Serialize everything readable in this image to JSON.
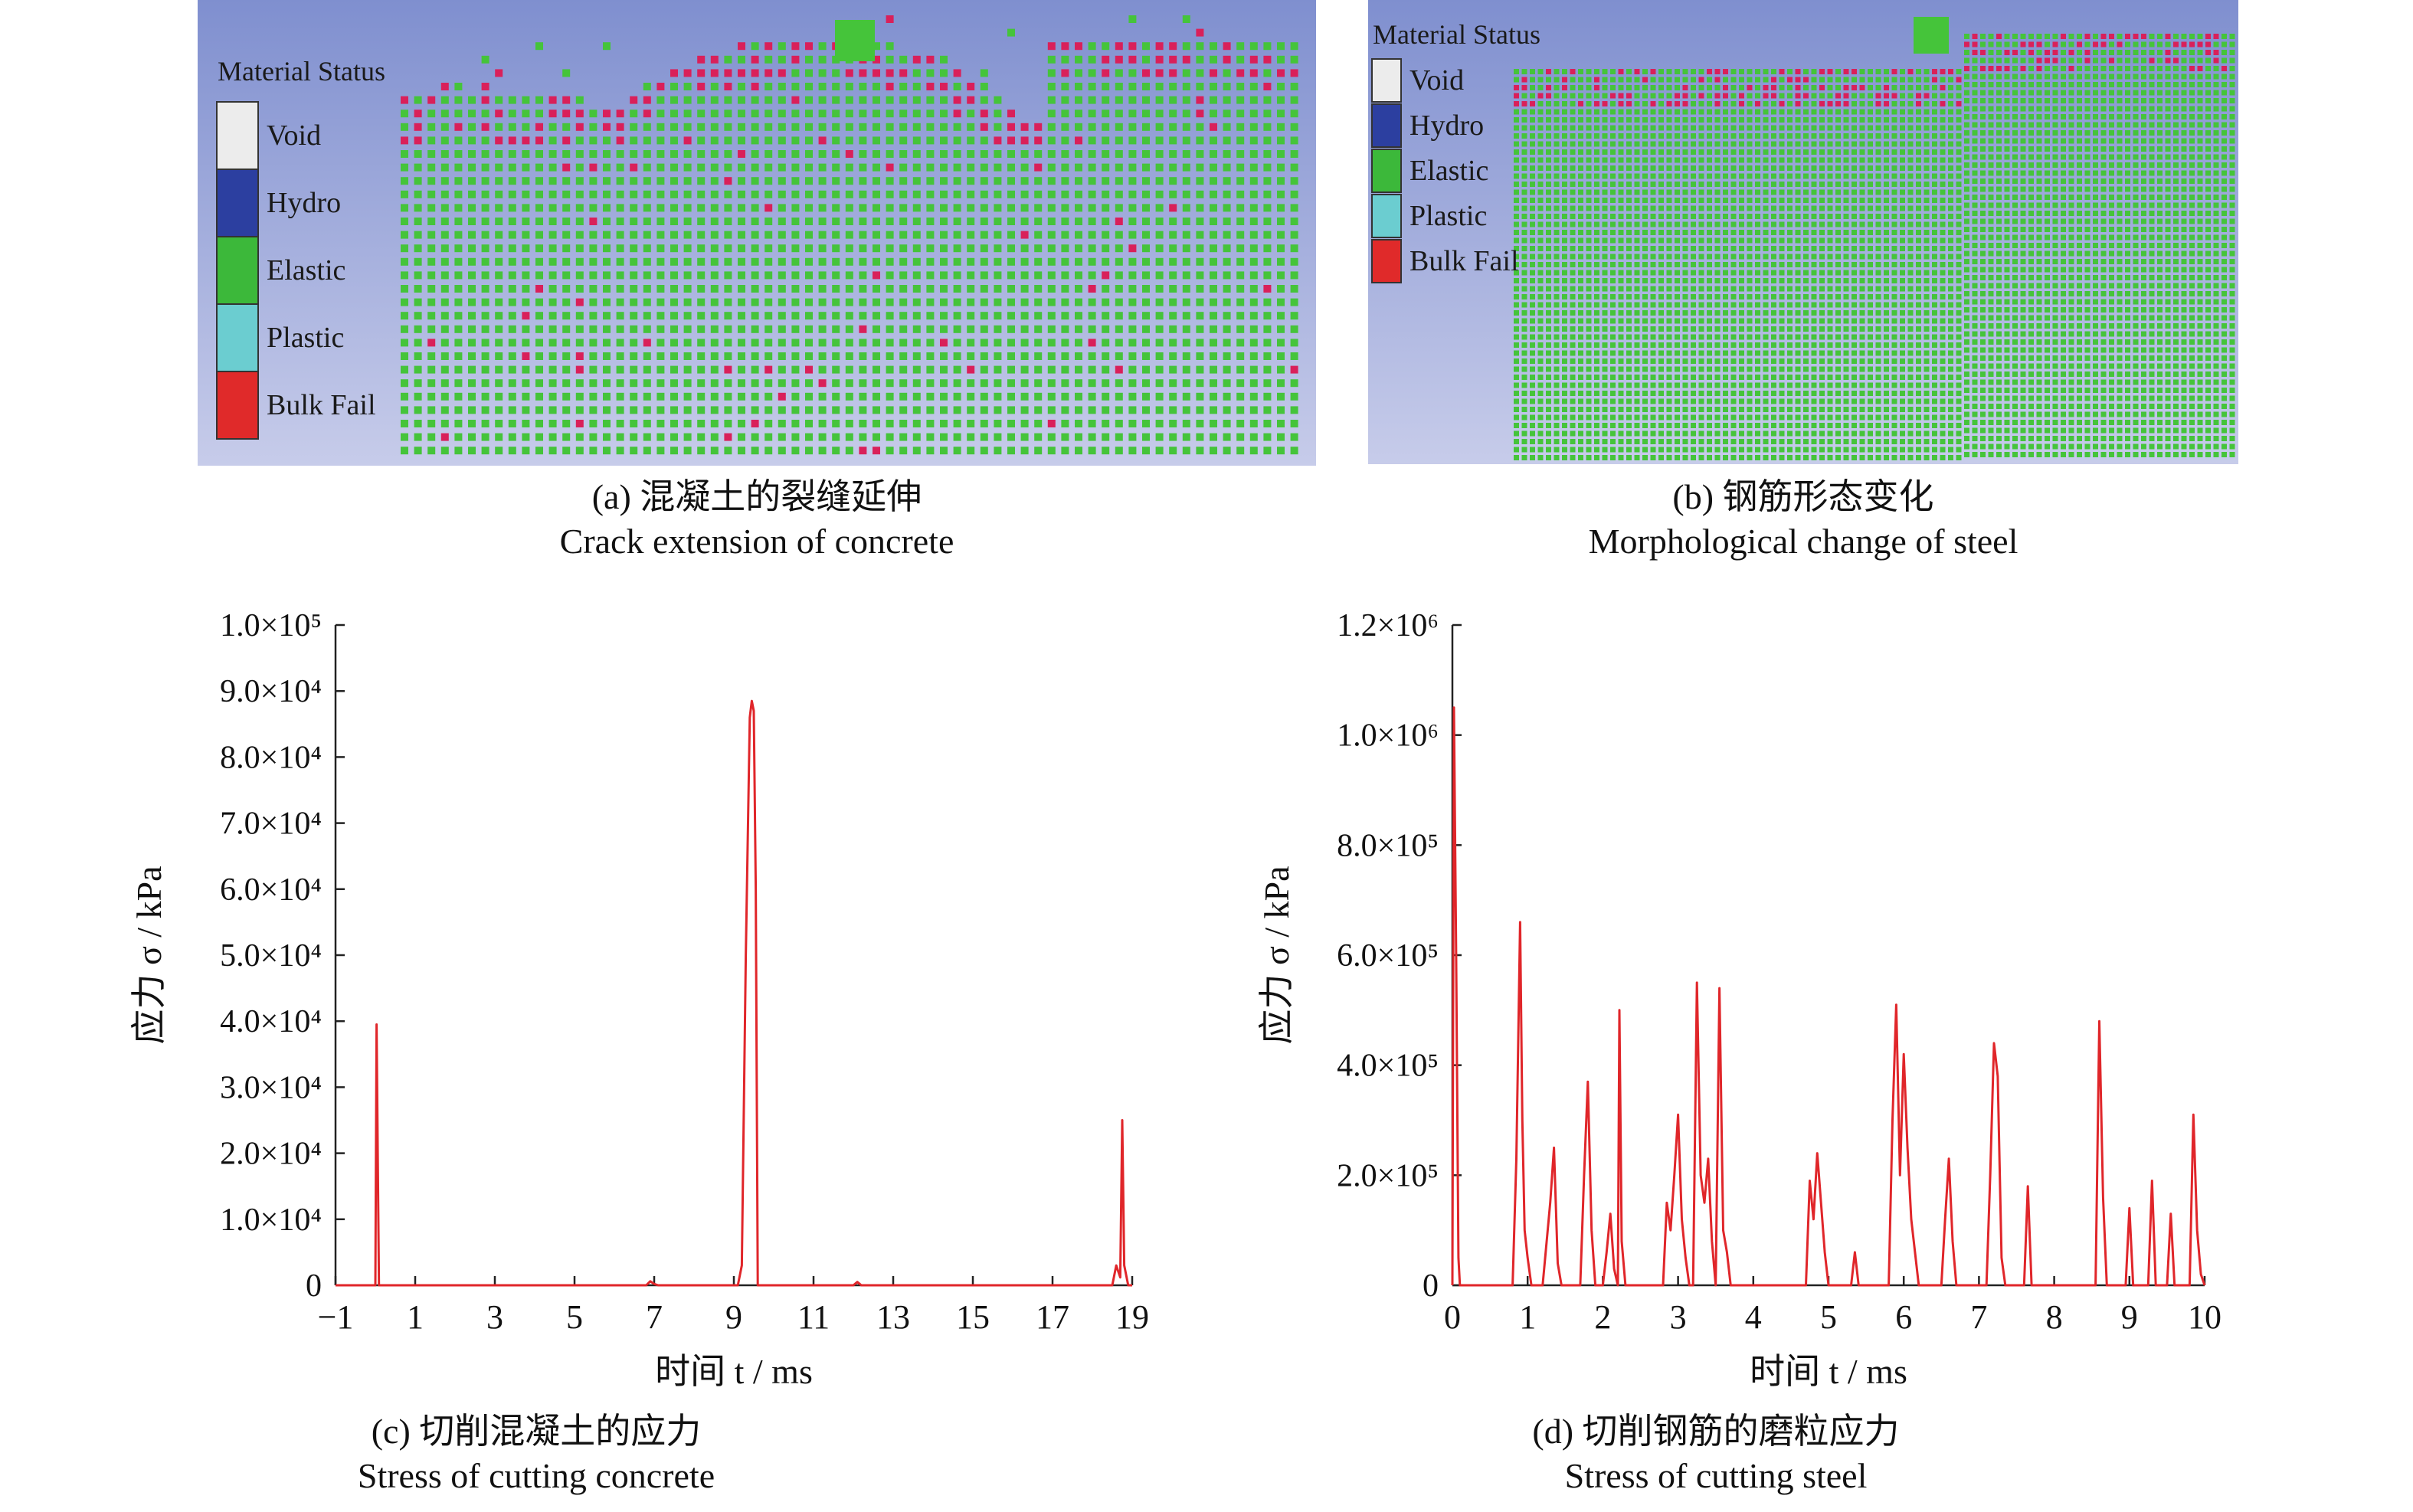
{
  "panel_a": {
    "legend_title": "Material Status",
    "legend": [
      {
        "label": "Void",
        "color": "#ececec"
      },
      {
        "label": "Hydro",
        "color": "#2c3fa0"
      },
      {
        "label": "Elastic",
        "color": "#3cb83a"
      },
      {
        "label": "Plastic",
        "color": "#6bcdd0"
      },
      {
        "label": "Bulk Fail",
        "color": "#e02a2a"
      }
    ],
    "caption_cn": "(a) 混凝土的裂缝延伸",
    "caption_en": "Crack extension of concrete"
  },
  "panel_b": {
    "legend_title": "Material Status",
    "legend": [
      {
        "label": "Void",
        "color": "#ececec"
      },
      {
        "label": "Hydro",
        "color": "#2c3fa0"
      },
      {
        "label": "Elastic",
        "color": "#3cb83a"
      },
      {
        "label": "Plastic",
        "color": "#6bcdd0"
      },
      {
        "label": "Bulk Fail",
        "color": "#e02a2a"
      }
    ],
    "caption_cn": "(b) 钢筋形态变化",
    "caption_en": "Morphological change of steel"
  },
  "colors": {
    "background_top": "#7f8fcf",
    "background_bottom": "#c7ccea",
    "elastic": "#45c43a",
    "bulk_fail": "#d9205a",
    "line": "#e0262a"
  },
  "chart_data": [
    {
      "type": "line",
      "ylabel": "应力 σ / kPa",
      "xlabel": "时间 t / ms",
      "xlim": [
        -1,
        19
      ],
      "ylim": [
        0,
        100000
      ],
      "xticks": [
        -1,
        1,
        3,
        5,
        7,
        9,
        11,
        13,
        15,
        17,
        19
      ],
      "xtick_labels": [
        "−1",
        "1",
        "3",
        "5",
        "7",
        "9",
        "11",
        "13",
        "15",
        "17",
        "19"
      ],
      "ytick_labels": [
        "0",
        "1.0×10⁴",
        "2.0×10⁴",
        "3.0×10⁴",
        "4.0×10⁴",
        "5.0×10⁴",
        "6.0×10⁴",
        "7.0×10⁴",
        "8.0×10⁴",
        "9.0×10⁴",
        "1.0×10⁵"
      ],
      "caption_cn": "(c) 切削混凝土的应力",
      "caption_en": "Stress of cutting concrete",
      "series": [
        {
          "color": "#e0262a",
          "points": [
            [
              -1,
              0
            ],
            [
              0,
              0
            ],
            [
              0.03,
              39500
            ],
            [
              0.06,
              20000
            ],
            [
              0.09,
              0
            ],
            [
              6.8,
              0
            ],
            [
              6.9,
              600
            ],
            [
              7.0,
              200
            ],
            [
              7.1,
              0
            ],
            [
              9.1,
              0
            ],
            [
              9.2,
              3000
            ],
            [
              9.3,
              50000
            ],
            [
              9.4,
              86000
            ],
            [
              9.45,
              88500
            ],
            [
              9.5,
              87000
            ],
            [
              9.55,
              60000
            ],
            [
              9.6,
              0
            ],
            [
              12.0,
              0
            ],
            [
              12.1,
              500
            ],
            [
              12.2,
              0
            ],
            [
              18.5,
              0
            ],
            [
              18.6,
              3000
            ],
            [
              18.7,
              1200
            ],
            [
              18.75,
              25000
            ],
            [
              18.8,
              3000
            ],
            [
              18.9,
              0
            ],
            [
              19,
              0
            ]
          ]
        }
      ]
    },
    {
      "type": "line",
      "ylabel": "应力 σ / kPa",
      "xlabel": "时间 t / ms",
      "xlim": [
        0,
        10
      ],
      "ylim": [
        0,
        1200000
      ],
      "xticks": [
        0,
        1,
        2,
        3,
        4,
        5,
        6,
        7,
        8,
        9,
        10
      ],
      "xtick_labels": [
        "0",
        "1",
        "2",
        "3",
        "4",
        "5",
        "6",
        "7",
        "8",
        "9",
        "10"
      ],
      "yticks": [
        0,
        200000,
        400000,
        600000,
        800000,
        1000000,
        1200000
      ],
      "ytick_labels": [
        "0",
        "2.0×10⁵",
        "4.0×10⁵",
        "6.0×10⁵",
        "8.0×10⁵",
        "1.0×10⁶",
        "1.2×10⁶"
      ],
      "caption_cn": "(d) 切削钢筋的磨粒应力",
      "caption_en": "Stress of cutting steel",
      "series": [
        {
          "color": "#e0262a",
          "points": [
            [
              0,
              0
            ],
            [
              0.02,
              1050000
            ],
            [
              0.05,
              600000
            ],
            [
              0.08,
              50000
            ],
            [
              0.1,
              0
            ],
            [
              0.8,
              0
            ],
            [
              0.85,
              230000
            ],
            [
              0.9,
              660000
            ],
            [
              0.93,
              300000
            ],
            [
              0.96,
              100000
            ],
            [
              1.0,
              50000
            ],
            [
              1.05,
              0
            ],
            [
              1.2,
              0
            ],
            [
              1.3,
              150000
            ],
            [
              1.35,
              250000
            ],
            [
              1.4,
              40000
            ],
            [
              1.45,
              0
            ],
            [
              1.7,
              0
            ],
            [
              1.75,
              200000
            ],
            [
              1.8,
              370000
            ],
            [
              1.85,
              100000
            ],
            [
              1.9,
              0
            ],
            [
              2.0,
              0
            ],
            [
              2.05,
              60000
            ],
            [
              2.1,
              130000
            ],
            [
              2.15,
              30000
            ],
            [
              2.2,
              0
            ],
            [
              2.2,
              0
            ],
            [
              2.22,
              500000
            ],
            [
              2.25,
              80000
            ],
            [
              2.3,
              0
            ],
            [
              2.8,
              0
            ],
            [
              2.85,
              150000
            ],
            [
              2.9,
              100000
            ],
            [
              2.95,
              200000
            ],
            [
              3.0,
              310000
            ],
            [
              3.05,
              120000
            ],
            [
              3.1,
              50000
            ],
            [
              3.15,
              0
            ],
            [
              3.2,
              0
            ],
            [
              3.25,
              550000
            ],
            [
              3.3,
              200000
            ],
            [
              3.35,
              150000
            ],
            [
              3.4,
              230000
            ],
            [
              3.45,
              80000
            ],
            [
              3.5,
              0
            ],
            [
              3.5,
              0
            ],
            [
              3.55,
              540000
            ],
            [
              3.6,
              100000
            ],
            [
              3.65,
              60000
            ],
            [
              3.7,
              0
            ],
            [
              4.7,
              0
            ],
            [
              4.75,
              190000
            ],
            [
              4.8,
              120000
            ],
            [
              4.85,
              240000
            ],
            [
              4.9,
              150000
            ],
            [
              4.95,
              60000
            ],
            [
              5.0,
              0
            ],
            [
              5.3,
              0
            ],
            [
              5.35,
              60000
            ],
            [
              5.4,
              0
            ],
            [
              5.8,
              0
            ],
            [
              5.85,
              300000
            ],
            [
              5.9,
              510000
            ],
            [
              5.95,
              200000
            ],
            [
              6.0,
              420000
            ],
            [
              6.05,
              250000
            ],
            [
              6.1,
              120000
            ],
            [
              6.2,
              0
            ],
            [
              6.5,
              0
            ],
            [
              6.55,
              120000
            ],
            [
              6.6,
              230000
            ],
            [
              6.65,
              80000
            ],
            [
              6.7,
              0
            ],
            [
              7.1,
              0
            ],
            [
              7.15,
              200000
            ],
            [
              7.2,
              440000
            ],
            [
              7.25,
              380000
            ],
            [
              7.3,
              50000
            ],
            [
              7.35,
              0
            ],
            [
              7.6,
              0
            ],
            [
              7.65,
              180000
            ],
            [
              7.7,
              0
            ],
            [
              8.55,
              0
            ],
            [
              8.6,
              480000
            ],
            [
              8.65,
              160000
            ],
            [
              8.7,
              0
            ],
            [
              8.95,
              0
            ],
            [
              9.0,
              140000
            ],
            [
              9.05,
              0
            ],
            [
              9.25,
              0
            ],
            [
              9.3,
              190000
            ],
            [
              9.35,
              0
            ],
            [
              9.5,
              0
            ],
            [
              9.55,
              130000
            ],
            [
              9.6,
              0
            ],
            [
              9.8,
              0
            ],
            [
              9.85,
              310000
            ],
            [
              9.9,
              100000
            ],
            [
              9.95,
              20000
            ],
            [
              10,
              0
            ]
          ]
        }
      ]
    }
  ]
}
